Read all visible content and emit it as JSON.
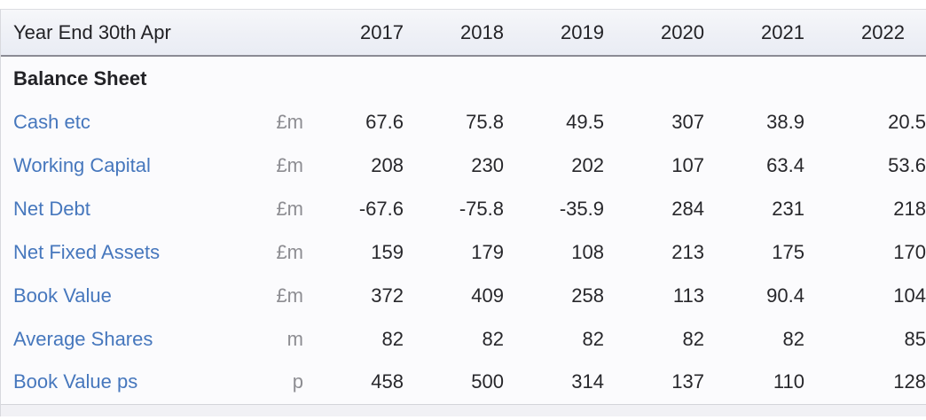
{
  "table": {
    "header": {
      "label": "Year End 30th Apr",
      "years": [
        "2017",
        "2018",
        "2019",
        "2020",
        "2021",
        "2022"
      ]
    },
    "section_title": "Balance Sheet",
    "rows": [
      {
        "label": "Cash etc",
        "unit": "£m",
        "values": [
          "67.6",
          "75.8",
          "49.5",
          "307",
          "38.9",
          "20.5"
        ]
      },
      {
        "label": "Working Capital",
        "unit": "£m",
        "values": [
          "208",
          "230",
          "202",
          "107",
          "63.4",
          "53.6"
        ]
      },
      {
        "label": "Net Debt",
        "unit": "£m",
        "values": [
          "-67.6",
          "-75.8",
          "-35.9",
          "284",
          "231",
          "218"
        ]
      },
      {
        "label": "Net Fixed Assets",
        "unit": "£m",
        "values": [
          "159",
          "179",
          "108",
          "213",
          "175",
          "170"
        ]
      },
      {
        "label": "Book Value",
        "unit": "£m",
        "values": [
          "372",
          "409",
          "258",
          "113",
          "90.4",
          "104"
        ]
      },
      {
        "label": "Average Shares",
        "unit": "m",
        "values": [
          "82",
          "82",
          "82",
          "82",
          "82",
          "85"
        ]
      },
      {
        "label": "Book Value ps",
        "unit": "p",
        "values": [
          "458",
          "500",
          "314",
          "137",
          "110",
          "128"
        ]
      }
    ],
    "colors": {
      "link_blue": "#4677bd",
      "unit_gray": "#8d8d92",
      "value_text": "#27272b",
      "header_band_top": "#f6f7fa",
      "header_band_bottom": "#e9ecf4",
      "header_border": "#8b8b94",
      "body_background": "#fbfbfd"
    }
  },
  "chart_data": {
    "type": "table",
    "title": "Balance Sheet",
    "categories": [
      "2017",
      "2018",
      "2019",
      "2020",
      "2021",
      "2022"
    ],
    "series": [
      {
        "name": "Cash etc (£m)",
        "values": [
          67.6,
          75.8,
          49.5,
          307,
          38.9,
          20.5
        ]
      },
      {
        "name": "Working Capital (£m)",
        "values": [
          208,
          230,
          202,
          107,
          63.4,
          53.6
        ]
      },
      {
        "name": "Net Debt (£m)",
        "values": [
          -67.6,
          -75.8,
          -35.9,
          284,
          231,
          218
        ]
      },
      {
        "name": "Net Fixed Assets (£m)",
        "values": [
          159,
          179,
          108,
          213,
          175,
          170
        ]
      },
      {
        "name": "Book Value (£m)",
        "values": [
          372,
          409,
          258,
          113,
          90.4,
          104
        ]
      },
      {
        "name": "Average Shares (m)",
        "values": [
          82,
          82,
          82,
          82,
          82,
          85
        ]
      },
      {
        "name": "Book Value ps (p)",
        "values": [
          458,
          500,
          314,
          137,
          110,
          128
        ]
      }
    ]
  }
}
